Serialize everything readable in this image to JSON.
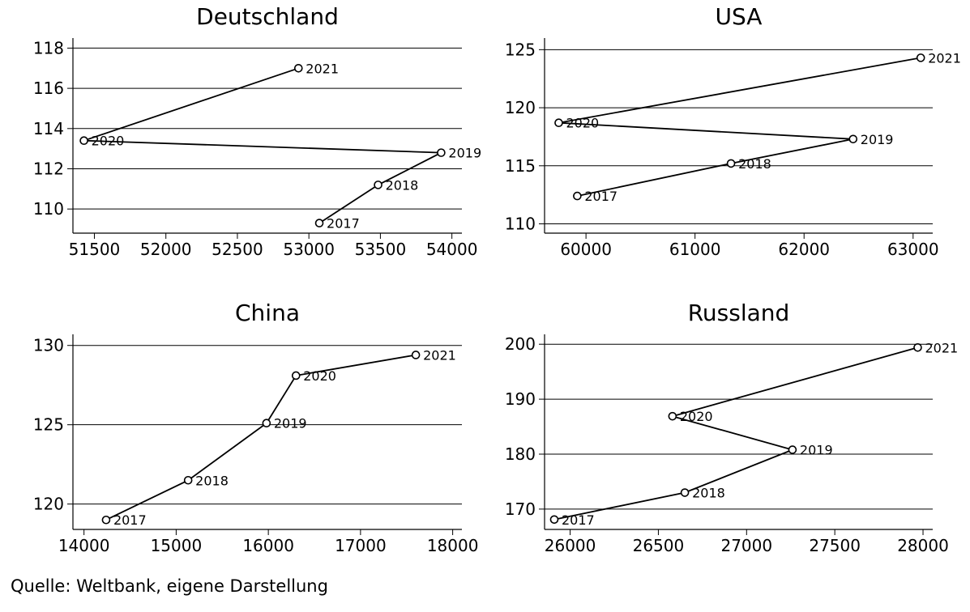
{
  "source_note": "Quelle: Weltbank, eigene Darstellung",
  "chart_data": [
    {
      "type": "line",
      "title": "Deutschland",
      "xlabel": "",
      "ylabel": "",
      "xlim": [
        51350,
        54070
      ],
      "ylim": [
        108.8,
        118.5
      ],
      "xticks": [
        51500,
        52000,
        52500,
        53000,
        53500,
        54000
      ],
      "yticks": [
        110,
        112,
        114,
        116,
        118
      ],
      "grid": "horizontal",
      "points": [
        {
          "label": "2017",
          "x": 53073,
          "y": 109.3
        },
        {
          "label": "2018",
          "x": 53484,
          "y": 111.2
        },
        {
          "label": "2019",
          "x": 53925,
          "y": 112.8
        },
        {
          "label": "2020",
          "x": 51427,
          "y": 113.4
        },
        {
          "label": "2021",
          "x": 52927,
          "y": 117.0
        }
      ]
    },
    {
      "type": "line",
      "title": "USA",
      "xlabel": "",
      "ylabel": "",
      "xlim": [
        59620,
        63180
      ],
      "ylim": [
        109.2,
        126.0
      ],
      "xticks": [
        60000,
        61000,
        62000,
        63000
      ],
      "yticks": [
        110,
        115,
        120,
        125
      ],
      "grid": "horizontal",
      "points": [
        {
          "label": "2017",
          "x": 59920,
          "y": 112.4
        },
        {
          "label": "2018",
          "x": 61330,
          "y": 115.2
        },
        {
          "label": "2019",
          "x": 62450,
          "y": 117.3
        },
        {
          "label": "2020",
          "x": 59750,
          "y": 118.7
        },
        {
          "label": "2021",
          "x": 63070,
          "y": 124.3
        }
      ]
    },
    {
      "type": "line",
      "title": "China",
      "xlabel": "",
      "ylabel": "",
      "xlim": [
        13880,
        18100
      ],
      "ylim": [
        118.4,
        130.7
      ],
      "xticks": [
        14000,
        15000,
        16000,
        17000,
        18000
      ],
      "yticks": [
        120,
        125,
        130
      ],
      "grid": "horizontal",
      "points": [
        {
          "label": "2017",
          "x": 14240,
          "y": 119.0
        },
        {
          "label": "2018",
          "x": 15130,
          "y": 121.5
        },
        {
          "label": "2019",
          "x": 15980,
          "y": 125.1
        },
        {
          "label": "2020",
          "x": 16300,
          "y": 128.1
        },
        {
          "label": "2021",
          "x": 17600,
          "y": 129.4
        }
      ]
    },
    {
      "type": "line",
      "title": "Russland",
      "xlabel": "",
      "ylabel": "",
      "xlim": [
        25855,
        28055
      ],
      "ylim": [
        166.3,
        201.8
      ],
      "xticks": [
        26000,
        26500,
        27000,
        27500,
        28000
      ],
      "yticks": [
        170,
        180,
        190,
        200
      ],
      "grid": "horizontal",
      "points": [
        {
          "label": "2017",
          "x": 25910,
          "y": 168.1
        },
        {
          "label": "2018",
          "x": 26650,
          "y": 173.0
        },
        {
          "label": "2019",
          "x": 27260,
          "y": 180.8
        },
        {
          "label": "2020",
          "x": 26580,
          "y": 186.9
        },
        {
          "label": "2021",
          "x": 27970,
          "y": 199.4
        }
      ]
    }
  ]
}
